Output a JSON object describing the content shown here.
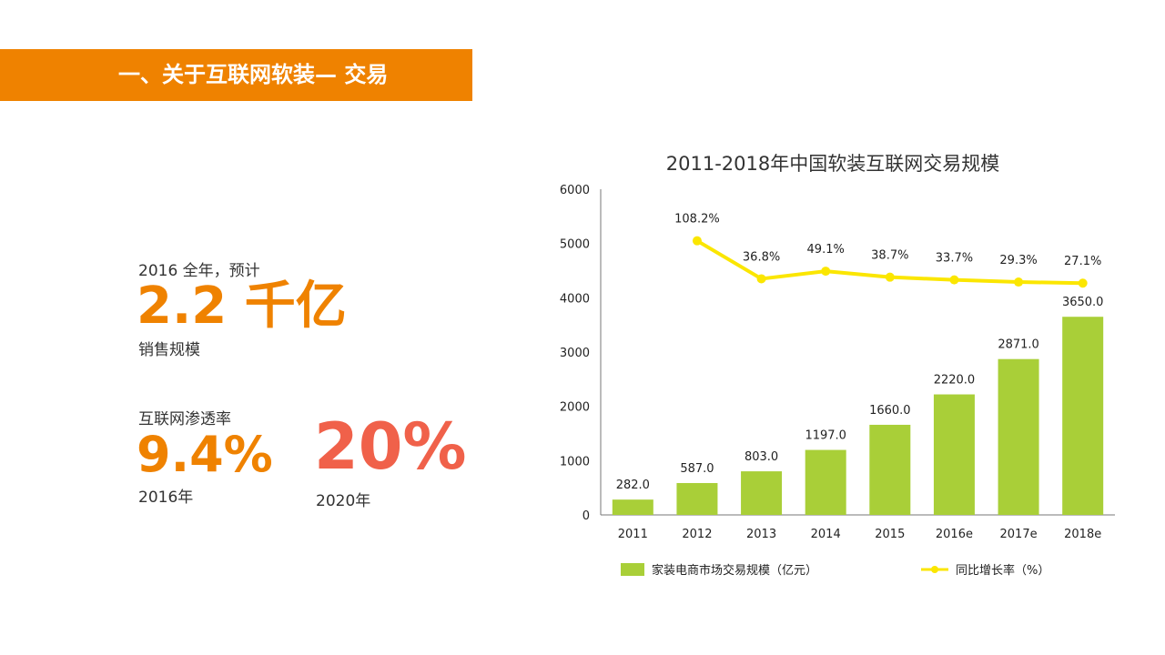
{
  "header": {
    "title": "一、关于互联网软装—  交易"
  },
  "stats": {
    "sales_year_label": "2016 全年，预计",
    "sales_value": "2.2 千亿",
    "sales_caption": "销售规模",
    "penetration_label": "互联网渗透率",
    "penetration_2016_value": "9.4%",
    "penetration_2016_year": "2016年",
    "penetration_2020_value": "20%",
    "penetration_2020_year": "2020年"
  },
  "chart_data": {
    "type": "bar",
    "title": "2011-2018年中国软装互联网交易规模",
    "categories": [
      "2011",
      "2012",
      "2013",
      "2014",
      "2015",
      "2016e",
      "2017e",
      "2018e"
    ],
    "series": [
      {
        "name": "家装电商市场交易规模（亿元）",
        "type": "bar",
        "color": "#a9cf38",
        "values": [
          282.0,
          587.0,
          803.0,
          1197.0,
          1660.0,
          2220.0,
          2871.0,
          3650.0
        ],
        "labels": [
          "282.0",
          "587.0",
          "803.0",
          "1197.0",
          "1660.0",
          "2220.0",
          "2871.0",
          "3650.0"
        ]
      },
      {
        "name": "同比增长率（%）",
        "type": "line",
        "color": "#fbe600",
        "values": [
          null,
          108.2,
          36.8,
          49.1,
          38.7,
          33.7,
          29.3,
          27.1
        ],
        "labels": [
          "",
          "108.2%",
          "36.8%",
          "49.1%",
          "38.7%",
          "33.7%",
          "29.3%",
          "27.1%"
        ]
      }
    ],
    "yticks": [
      "0",
      "1000",
      "2000",
      "3000",
      "4000",
      "5000",
      "6000"
    ],
    "ylim": [
      0,
      6000
    ],
    "line_display_values": [
      null,
      5050,
      4350,
      4490,
      4380,
      4330,
      4290,
      4270
    ],
    "legend_position": "bottom"
  },
  "colors": {
    "accent": "#ef8200",
    "highlight": "#f0614a",
    "bar": "#a9cf38",
    "line": "#fbe600"
  }
}
